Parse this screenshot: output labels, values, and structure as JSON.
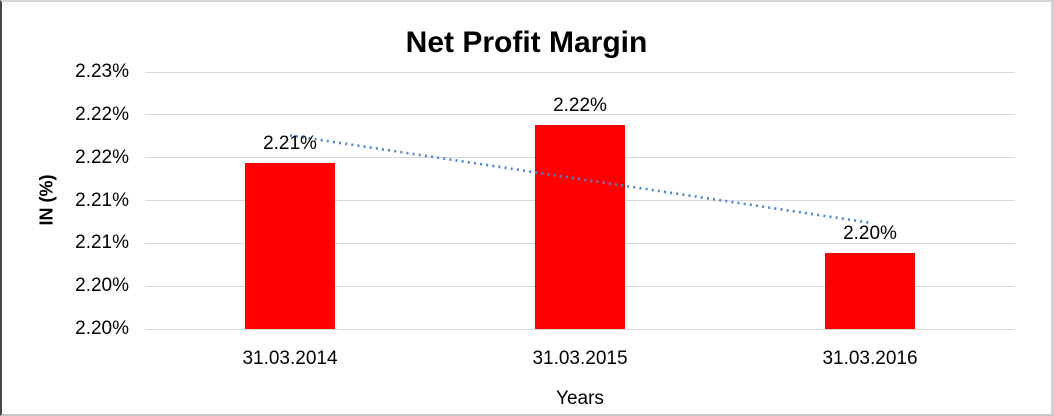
{
  "chart_data": {
    "type": "bar",
    "title": "Net Profit Margin",
    "categories": [
      "31.03.2014",
      "31.03.2015",
      "31.03.2016"
    ],
    "values": [
      2.2144,
      2.2188,
      2.2039
    ],
    "data_labels": [
      "2.21%",
      "2.22%",
      "2.20%"
    ],
    "xlabel": "Years",
    "ylabel": "IN (%)",
    "ylim": [
      2.195,
      2.225
    ],
    "yticks": [
      {
        "value": 2.225,
        "label": "2.23%"
      },
      {
        "value": 2.22,
        "label": "2.22%"
      },
      {
        "value": 2.215,
        "label": "2.22%"
      },
      {
        "value": 2.21,
        "label": "2.21%"
      },
      {
        "value": 2.205,
        "label": "2.21%"
      },
      {
        "value": 2.2,
        "label": "2.20%"
      },
      {
        "value": 2.195,
        "label": "2.20%"
      }
    ],
    "grid": true,
    "legend": "none",
    "trendline": {
      "type": "linear",
      "style": "dotted",
      "start_value": 2.2176,
      "end_value": 2.2074
    },
    "colors": {
      "bar": "#FF0000",
      "trendline": "#4E86C8",
      "gridline": "#D9D9D9",
      "text": "#000000"
    }
  }
}
